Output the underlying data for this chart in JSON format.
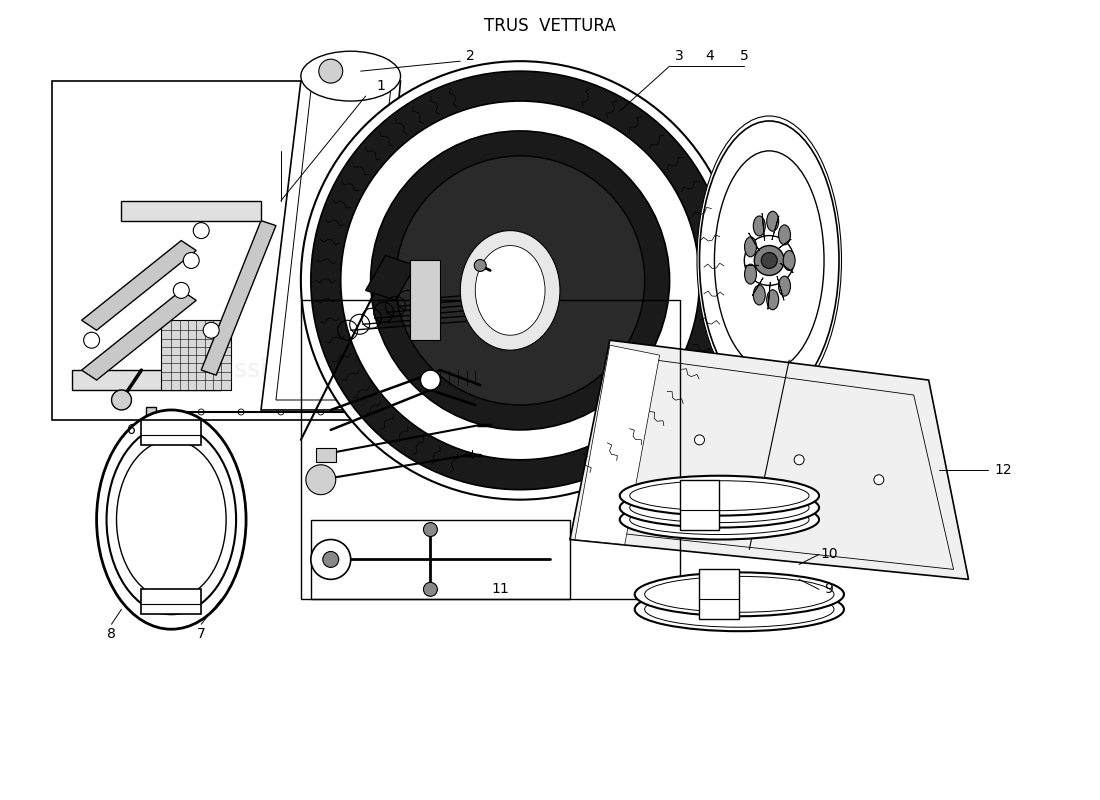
{
  "title": "TRUS  VETTURA",
  "bg": "#ffffff",
  "lc": "#000000",
  "lw": 1.0,
  "label_fs": 10,
  "title_fs": 12
}
